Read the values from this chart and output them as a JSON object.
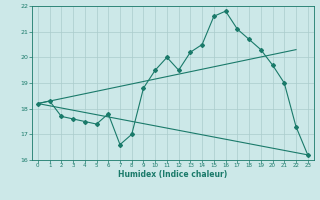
{
  "xlabel": "Humidex (Indice chaleur)",
  "ylabel": "",
  "bg_color": "#cce8e8",
  "grid_color": "#aacccc",
  "line_color": "#1a7a6a",
  "xlim": [
    -0.5,
    23.5
  ],
  "ylim": [
    16,
    22
  ],
  "xticks": [
    0,
    1,
    2,
    3,
    4,
    5,
    6,
    7,
    8,
    9,
    10,
    11,
    12,
    13,
    14,
    15,
    16,
    17,
    18,
    19,
    20,
    21,
    22,
    23
  ],
  "yticks": [
    16,
    17,
    18,
    19,
    20,
    21,
    22
  ],
  "line1_x": [
    0,
    1,
    2,
    3,
    4,
    5,
    6,
    7,
    8,
    9,
    10,
    11,
    12,
    13,
    14,
    15,
    16,
    17,
    18,
    19,
    20,
    21,
    22,
    23
  ],
  "line1_y": [
    18.2,
    18.3,
    17.7,
    17.6,
    17.5,
    17.4,
    17.8,
    16.6,
    17.0,
    18.8,
    19.5,
    20.0,
    19.5,
    20.2,
    20.5,
    21.6,
    21.8,
    21.1,
    20.7,
    20.3,
    19.7,
    19.0,
    17.3,
    16.2
  ],
  "line2_x": [
    0,
    22
  ],
  "line2_y": [
    18.2,
    20.3
  ],
  "line3_x": [
    0,
    23
  ],
  "line3_y": [
    18.2,
    16.2
  ]
}
